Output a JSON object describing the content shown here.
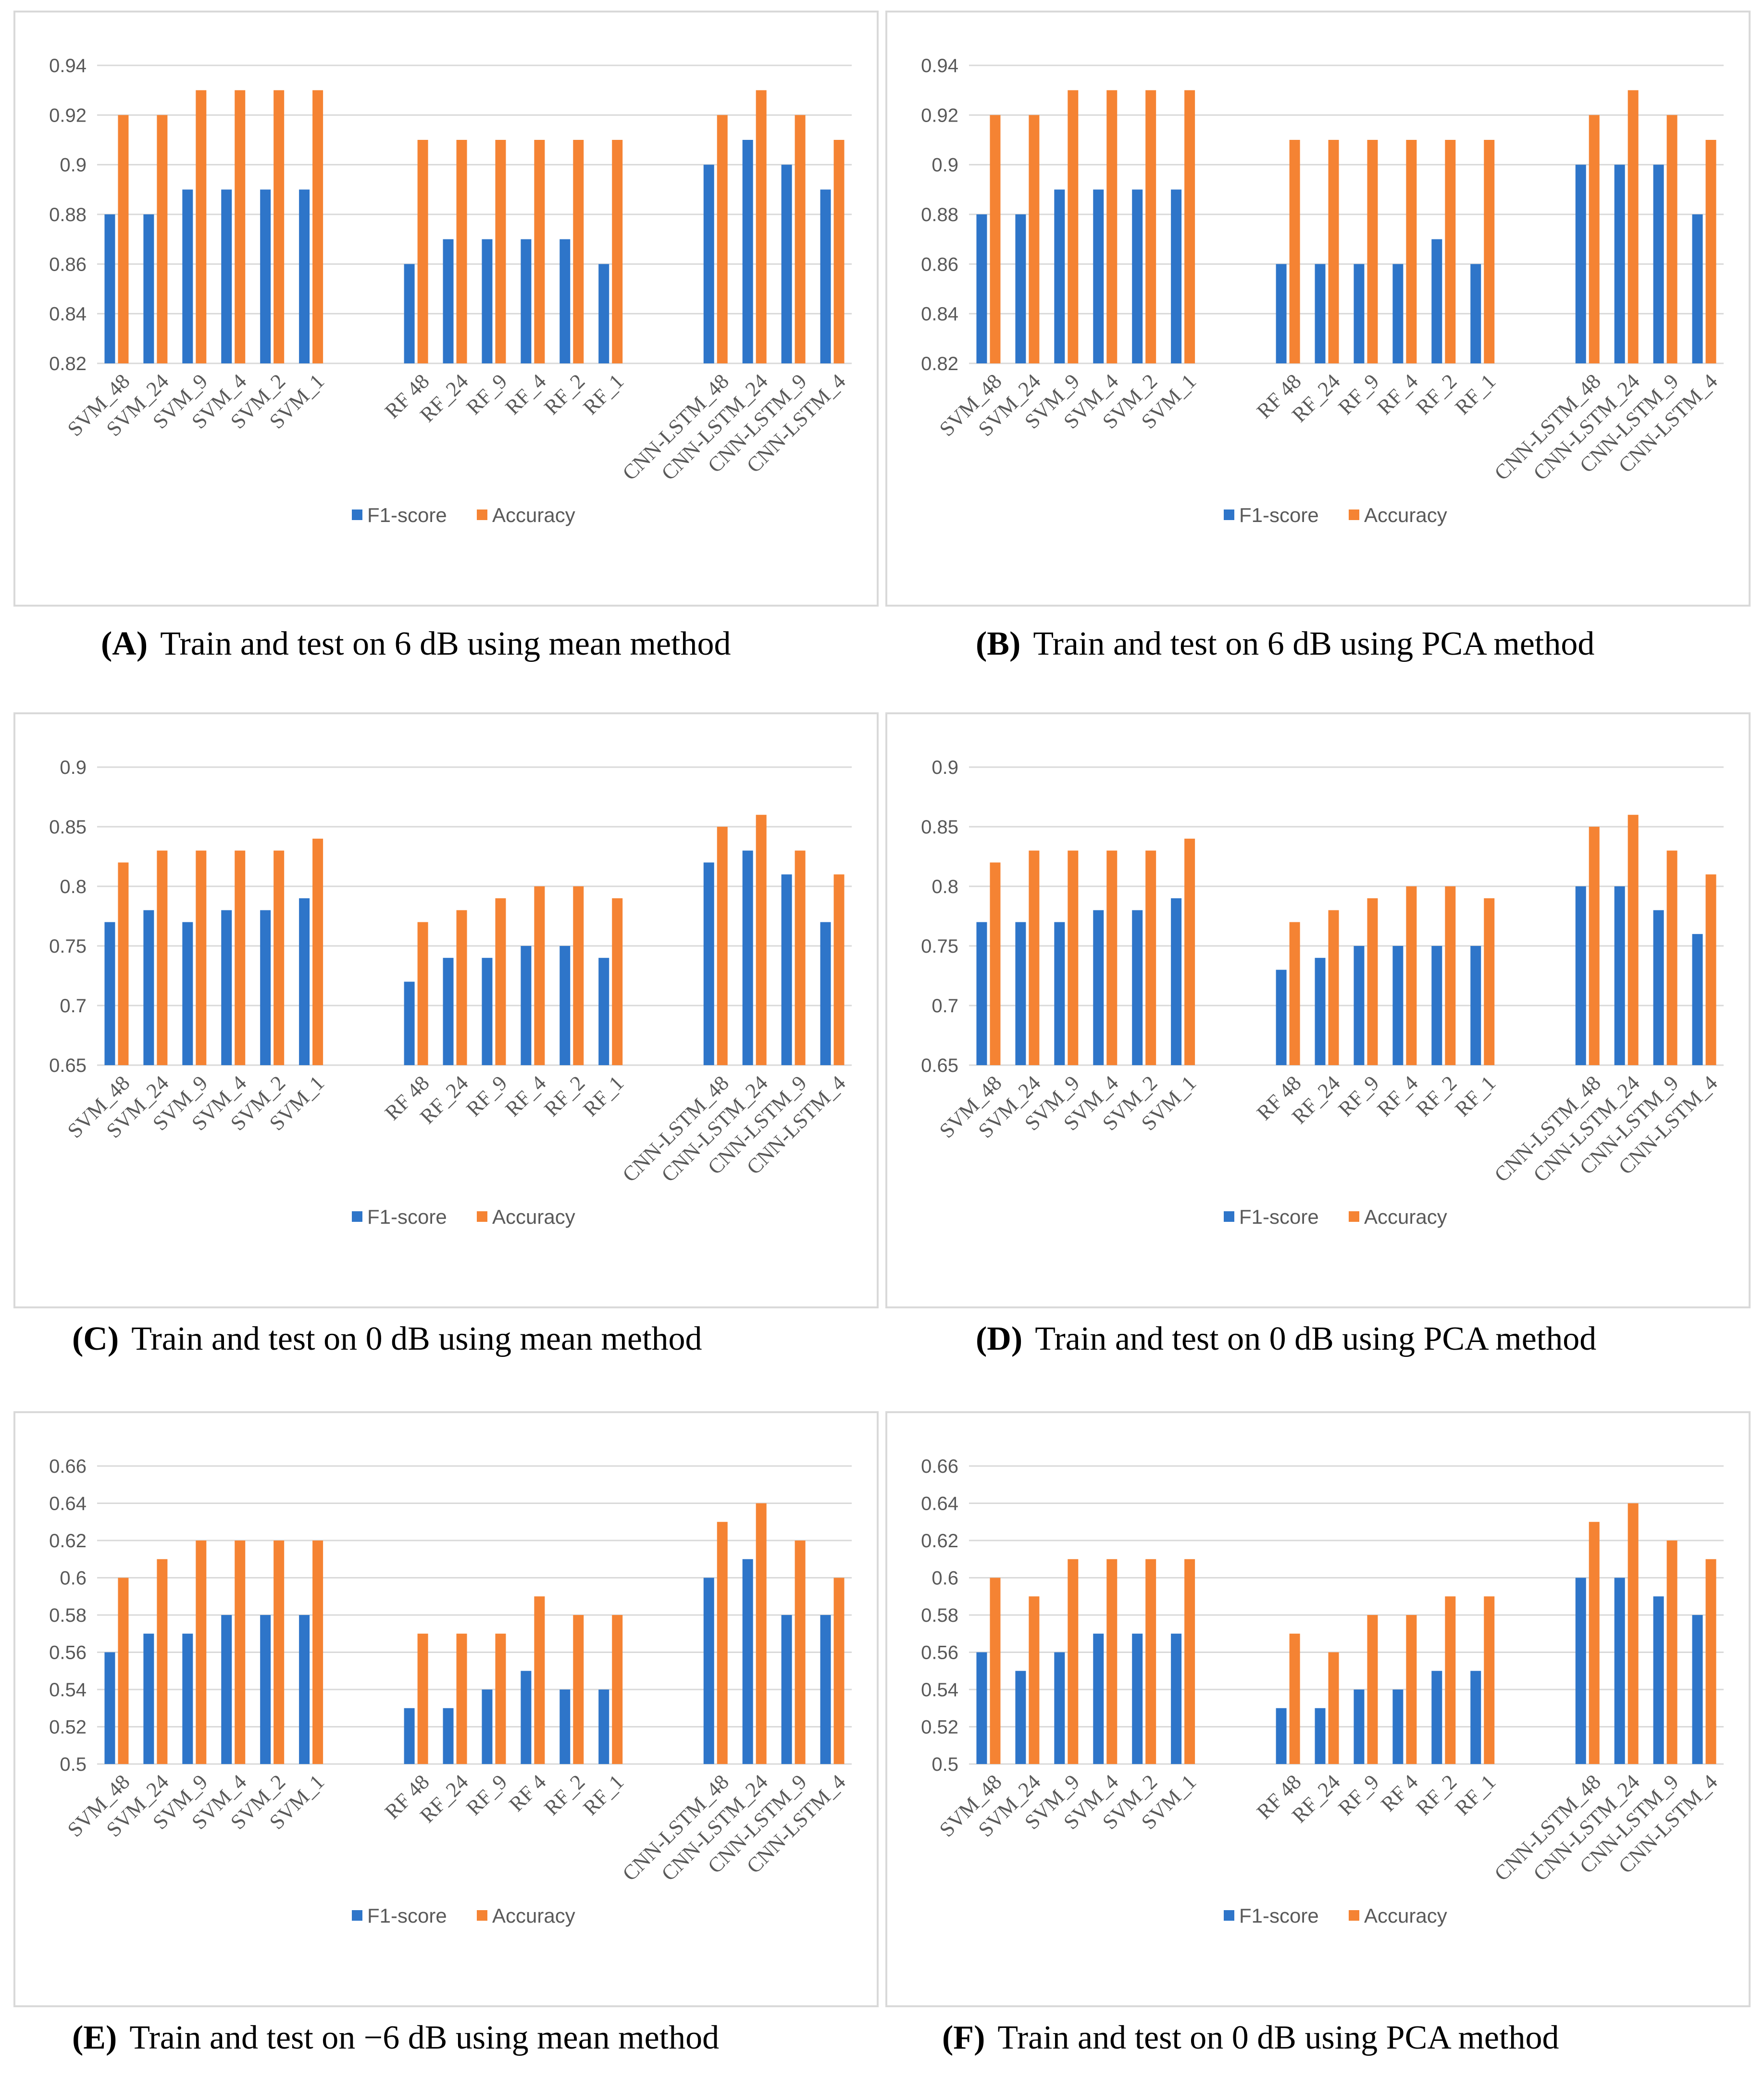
{
  "colors": {
    "f1": "#2e75c9",
    "accuracy": "#f58333",
    "grid": "#d9d9d9",
    "text": "#595959"
  },
  "legend": {
    "f1": "F1-score",
    "accuracy": "Accuracy"
  },
  "chart_data": [
    {
      "type": "bar",
      "title": "",
      "letter": "(A)",
      "caption": "Train and test on 6 dB using mean method",
      "categories": [
        "SVM_48",
        "SVM_24",
        "SVM_9",
        "SVM_4",
        "SVM_2",
        "SVM_1",
        "RF 48",
        "RF_24",
        "RF_9",
        "RF_4",
        "RF_2",
        "RF_1",
        "CNN-LSTM_48",
        "CNN-LSTM_24",
        "CNN-LSTM_9",
        "CNN-LSTM_4"
      ],
      "groups": [
        6,
        6,
        4
      ],
      "series": [
        {
          "name": "F1-score",
          "values": [
            0.88,
            0.88,
            0.89,
            0.89,
            0.89,
            0.89,
            0.86,
            0.87,
            0.87,
            0.87,
            0.87,
            0.86,
            0.9,
            0.91,
            0.9,
            0.89
          ]
        },
        {
          "name": "Accuracy",
          "values": [
            0.92,
            0.92,
            0.93,
            0.93,
            0.93,
            0.93,
            0.91,
            0.91,
            0.91,
            0.91,
            0.91,
            0.91,
            0.92,
            0.93,
            0.92,
            0.91
          ]
        }
      ],
      "ylim": [
        0.82,
        0.94
      ],
      "yticks": [
        "0.82",
        "0.84",
        "0.86",
        "0.88",
        "0.9",
        "0.92",
        "0.94"
      ],
      "legend_position": "bottom"
    },
    {
      "type": "bar",
      "title": "",
      "letter": "(B)",
      "caption": "Train and test on 6 dB using PCA method",
      "categories": [
        "SVM_48",
        "SVM_24",
        "SVM_9",
        "SVM_4",
        "SVM_2",
        "SVM_1",
        "RF 48",
        "RF_24",
        "RF_9",
        "RF_4",
        "RF_2",
        "RF_1",
        "CNN-LSTM_48",
        "CNN-LSTM_24",
        "CNN-LSTM_9",
        "CNN-LSTM_4"
      ],
      "groups": [
        6,
        6,
        4
      ],
      "series": [
        {
          "name": "F1-score",
          "values": [
            0.88,
            0.88,
            0.89,
            0.89,
            0.89,
            0.89,
            0.86,
            0.86,
            0.86,
            0.86,
            0.87,
            0.86,
            0.9,
            0.9,
            0.9,
            0.88
          ]
        },
        {
          "name": "Accuracy",
          "values": [
            0.92,
            0.92,
            0.93,
            0.93,
            0.93,
            0.93,
            0.91,
            0.91,
            0.91,
            0.91,
            0.91,
            0.91,
            0.92,
            0.93,
            0.92,
            0.91
          ]
        }
      ],
      "ylim": [
        0.82,
        0.94
      ],
      "yticks": [
        "0.82",
        "0.84",
        "0.86",
        "0.88",
        "0.9",
        "0.92",
        "0.94"
      ],
      "legend_position": "bottom"
    },
    {
      "type": "bar",
      "title": "",
      "letter": "(C)",
      "caption": "Train and test on 0 dB using mean method",
      "categories": [
        "SVM_48",
        "SVM_24",
        "SVM_9",
        "SVM_4",
        "SVM_2",
        "SVM_1",
        "RF 48",
        "RF_24",
        "RF_9",
        "RF_4",
        "RF_2",
        "RF_1",
        "CNN-LSTM_48",
        "CNN-LSTM_24",
        "CNN-LSTM_9",
        "CNN-LSTM_4"
      ],
      "groups": [
        6,
        6,
        4
      ],
      "series": [
        {
          "name": "F1-score",
          "values": [
            0.77,
            0.78,
            0.77,
            0.78,
            0.78,
            0.79,
            0.72,
            0.74,
            0.74,
            0.75,
            0.75,
            0.74,
            0.82,
            0.83,
            0.81,
            0.77
          ]
        },
        {
          "name": "Accuracy",
          "values": [
            0.82,
            0.83,
            0.83,
            0.83,
            0.83,
            0.84,
            0.77,
            0.78,
            0.79,
            0.8,
            0.8,
            0.79,
            0.85,
            0.86,
            0.83,
            0.81
          ]
        }
      ],
      "ylim": [
        0.65,
        0.9
      ],
      "yticks": [
        "0.65",
        "0.7",
        "0.75",
        "0.8",
        "0.85",
        "0.9"
      ],
      "legend_position": "bottom"
    },
    {
      "type": "bar",
      "title": "",
      "letter": "(D)",
      "caption": "Train and test on 0 dB using PCA method",
      "categories": [
        "SVM_48",
        "SVM_24",
        "SVM_9",
        "SVM_4",
        "SVM_2",
        "SVM_1",
        "RF 48",
        "RF_24",
        "RF_9",
        "RF_4",
        "RF_2",
        "RF_1",
        "CNN-LSTM_48",
        "CNN-LSTM_24",
        "CNN-LSTM_9",
        "CNN-LSTM_4"
      ],
      "groups": [
        6,
        6,
        4
      ],
      "series": [
        {
          "name": "F1-score",
          "values": [
            0.77,
            0.77,
            0.77,
            0.78,
            0.78,
            0.79,
            0.73,
            0.74,
            0.75,
            0.75,
            0.75,
            0.75,
            0.8,
            0.8,
            0.78,
            0.76
          ]
        },
        {
          "name": "Accuracy",
          "values": [
            0.82,
            0.83,
            0.83,
            0.83,
            0.83,
            0.84,
            0.77,
            0.78,
            0.79,
            0.8,
            0.8,
            0.79,
            0.85,
            0.86,
            0.83,
            0.81
          ]
        }
      ],
      "ylim": [
        0.65,
        0.9
      ],
      "yticks": [
        "0.65",
        "0.7",
        "0.75",
        "0.8",
        "0.85",
        "0.9"
      ],
      "legend_position": "bottom"
    },
    {
      "type": "bar",
      "title": "",
      "letter": "(E)",
      "caption": "Train and test on −6 dB using mean method",
      "categories": [
        "SVM_48",
        "SVM_24",
        "SVM_9",
        "SVM_4",
        "SVM_2",
        "SVM_1",
        "RF 48",
        "RF_24",
        "RF_9",
        "RF 4",
        "RF_2",
        "RF_1",
        "CNN-LSTM_48",
        "CNN-LSTM_24",
        "CNN-LSTM_9",
        "CNN-LSTM_4"
      ],
      "groups": [
        6,
        6,
        4
      ],
      "series": [
        {
          "name": "F1-score",
          "values": [
            0.56,
            0.57,
            0.57,
            0.58,
            0.58,
            0.58,
            0.53,
            0.53,
            0.54,
            0.55,
            0.54,
            0.54,
            0.6,
            0.61,
            0.58,
            0.58
          ]
        },
        {
          "name": "Accuracy",
          "values": [
            0.6,
            0.61,
            0.62,
            0.62,
            0.62,
            0.62,
            0.57,
            0.57,
            0.57,
            0.59,
            0.58,
            0.58,
            0.63,
            0.64,
            0.62,
            0.6
          ]
        }
      ],
      "ylim": [
        0.5,
        0.66
      ],
      "yticks": [
        "0.5",
        "0.52",
        "0.54",
        "0.56",
        "0.58",
        "0.6",
        "0.62",
        "0.64",
        "0.66"
      ],
      "legend_position": "bottom"
    },
    {
      "type": "bar",
      "title": "",
      "letter": "(F)",
      "caption": "Train and test on 0 dB using PCA method",
      "categories": [
        "SVM_48",
        "SVM_24",
        "SVM_9",
        "SVM_4",
        "SVM_2",
        "SVM_1",
        "RF 48",
        "RF_24",
        "RF_9",
        "RF 4",
        "RF_2",
        "RF_1",
        "CNN-LSTM_48",
        "CNN-LSTM_24",
        "CNN-LSTM_9",
        "CNN-LSTM_4"
      ],
      "groups": [
        6,
        6,
        4
      ],
      "series": [
        {
          "name": "F1-score",
          "values": [
            0.56,
            0.55,
            0.56,
            0.57,
            0.57,
            0.57,
            0.53,
            0.53,
            0.54,
            0.54,
            0.55,
            0.55,
            0.6,
            0.6,
            0.59,
            0.58
          ]
        },
        {
          "name": "Accuracy",
          "values": [
            0.6,
            0.59,
            0.61,
            0.61,
            0.61,
            0.61,
            0.57,
            0.56,
            0.58,
            0.58,
            0.59,
            0.59,
            0.63,
            0.64,
            0.62,
            0.61
          ]
        }
      ],
      "ylim": [
        0.5,
        0.66
      ],
      "yticks": [
        "0.5",
        "0.52",
        "0.54",
        "0.56",
        "0.58",
        "0.6",
        "0.62",
        "0.64",
        "0.66"
      ],
      "legend_position": "bottom"
    }
  ]
}
